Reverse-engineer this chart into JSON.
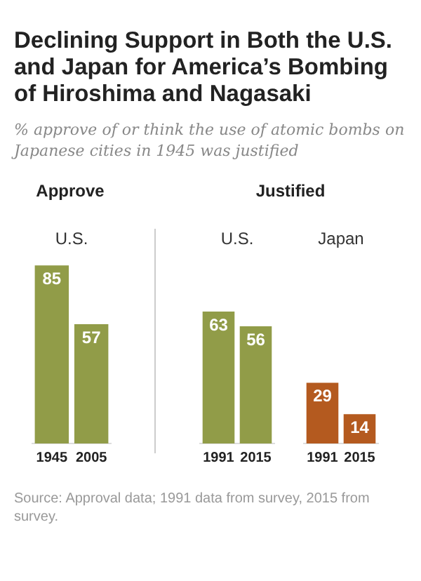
{
  "chart_data": [
    {
      "type": "other",
      "title": "Declining Support in Both the U.S. and Japan for America’s Bombing of Hiroshima and Nagasaki",
      "subtitle": "% approve of or think the use of atomic bombs on Japanese cities in 1945 was justified"
    },
    {
      "type": "bar",
      "title": "Approve",
      "subtitle": "U.S.",
      "categories": [
        "1945",
        "2005"
      ],
      "values": [
        85,
        57
      ],
      "color": "#919c48",
      "data_labels": true,
      "legend": false,
      "grid": false
    },
    {
      "type": "bar",
      "title": "Justified",
      "subtitle": "U.S.",
      "categories": [
        "1991",
        "2015"
      ],
      "values": [
        63,
        56
      ],
      "color": "#919c48",
      "data_labels": true,
      "legend": false,
      "grid": false
    },
    {
      "type": "bar",
      "subtitle": "Japan",
      "categories": [
        "1991",
        "2015"
      ],
      "values": [
        29,
        14
      ],
      "color": "#b45a1f",
      "data_labels": true,
      "legend": false,
      "grid": false
    },
    {
      "type": "other",
      "annotations": [
        "Source: Approval data; 1991 data from survey, 2015 from survey."
      ]
    }
  ]
}
